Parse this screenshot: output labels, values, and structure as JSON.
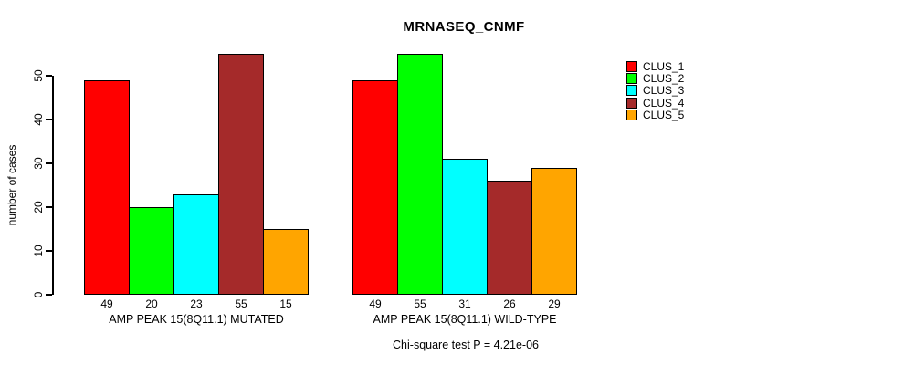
{
  "chart_data": {
    "type": "bar",
    "title": "MRNASEQ_CNMF",
    "ylabel": "number of cases",
    "xlabel": "",
    "ylim": [
      0,
      55
    ],
    "yticks": [
      0,
      10,
      20,
      30,
      40,
      50
    ],
    "grid": false,
    "bar_value_labels_shown": true,
    "legend": {
      "position": "top-right",
      "entries": [
        {
          "label": "CLUS_1",
          "color": "#FF0000"
        },
        {
          "label": "CLUS_2",
          "color": "#00FF00"
        },
        {
          "label": "CLUS_3",
          "color": "#00FFFF"
        },
        {
          "label": "CLUS_4",
          "color": "#A52A2A"
        },
        {
          "label": "CLUS_5",
          "color": "#FFA500"
        }
      ]
    },
    "groups": [
      {
        "label": "AMP PEAK 15(8Q11.1) MUTATED",
        "values": [
          49,
          20,
          23,
          55,
          15
        ]
      },
      {
        "label": "AMP PEAK 15(8Q11.1) WILD-TYPE",
        "values": [
          49,
          55,
          31,
          26,
          29
        ]
      }
    ],
    "footnote": "Chi-square test P = 4.21e-06"
  }
}
